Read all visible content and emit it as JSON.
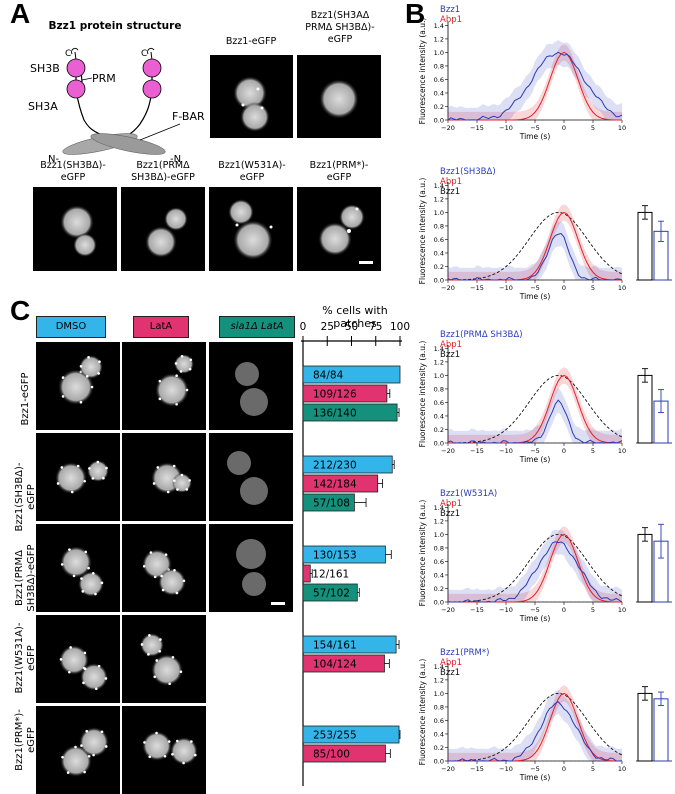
{
  "panel_letters": {
    "a": "A",
    "b": "B",
    "c": "C"
  },
  "panel_a": {
    "title": "Bzz1 protein structure",
    "domain_labels": {
      "sh3b": "SH3B",
      "prm": "PRM",
      "sh3a": "SH3A",
      "fbar": "F-BAR",
      "n1": "N-",
      "n2": "-N",
      "c": "C"
    },
    "row1_labels": [
      "Bzz1-eGFP",
      "Bzz1(SH3AΔ\nPRMΔ SH3BΔ)-\neGFP"
    ],
    "row2_labels": [
      "Bzz1(SH3BΔ)-\neGFP",
      "Bzz1(PRMΔ\nSH3BΔ)-eGFP",
      "Bzz1(W531A)-\neGFP",
      "Bzz1(PRM*)-\neGFP"
    ]
  },
  "panel_c": {
    "conditions": [
      "DMSO",
      "LatA",
      "sla1Δ LatA"
    ],
    "condition_colors": [
      "#33b5ea",
      "#e0336f",
      "#14917c"
    ],
    "axis_title": "% cells with patches",
    "ticks": [
      "0",
      "25",
      "50",
      "75",
      "100"
    ],
    "row_labels": [
      "Bzz1-eGFP",
      "Bzz1(SH3BΔ)-\neGFP",
      "Bzz1(PRMΔ\nSH3BΔ)-eGFP",
      "Bzz1(W531A)-\neGFP",
      "Bzz1(PRM*)-\neGFP"
    ]
  },
  "chart_data": [
    {
      "type": "bar",
      "title": "% cells with patches",
      "xlim": [
        0,
        100
      ],
      "groups": [
        {
          "name": "Bzz1-eGFP",
          "bars": [
            {
              "condition": "DMSO",
              "value": 100,
              "label": "84/84",
              "err": 0
            },
            {
              "condition": "LatA",
              "value": 86.5,
              "label": "109/126",
              "err": 3
            },
            {
              "condition": "sla1Δ LatA",
              "value": 97,
              "label": "136/140",
              "err": 2
            }
          ]
        },
        {
          "name": "Bzz1(SH3BΔ)-eGFP",
          "bars": [
            {
              "condition": "DMSO",
              "value": 92,
              "label": "212/230",
              "err": 2
            },
            {
              "condition": "LatA",
              "value": 77,
              "label": "142/184",
              "err": 5
            },
            {
              "condition": "sla1Δ LatA",
              "value": 53,
              "label": "57/108",
              "err": 12
            }
          ]
        },
        {
          "name": "Bzz1(PRMΔ SH3BΔ)-eGFP",
          "bars": [
            {
              "condition": "DMSO",
              "value": 85,
              "label": "130/153",
              "err": 6
            },
            {
              "condition": "LatA",
              "value": 7.5,
              "label": "12/161",
              "err": 2
            },
            {
              "condition": "sla1Δ LatA",
              "value": 56,
              "label": "57/102",
              "err": 2
            }
          ]
        },
        {
          "name": "Bzz1(W531A)-eGFP",
          "bars": [
            {
              "condition": "DMSO",
              "value": 96,
              "label": "154/161",
              "err": 3
            },
            {
              "condition": "LatA",
              "value": 84,
              "label": "104/124",
              "err": 5
            }
          ]
        },
        {
          "name": "Bzz1(PRM*)-eGFP",
          "bars": [
            {
              "condition": "DMSO",
              "value": 99,
              "label": "253/255",
              "err": 1
            },
            {
              "condition": "LatA",
              "value": 85,
              "label": "85/100",
              "err": 5
            }
          ]
        }
      ]
    },
    {
      "type": "line",
      "xlabel": "Time (s)",
      "ylabel": "Fluorescence intensity (a.u.)",
      "xlim": [
        -20,
        10
      ],
      "ylim": [
        0,
        1.45
      ],
      "xticks": [
        "−20",
        "−15",
        "−10",
        "−5",
        "0",
        "5",
        "10"
      ],
      "yticks": [
        "0.0",
        "0.2",
        "0.4",
        "0.6",
        "0.8",
        "1.0",
        "1.2",
        "1.4"
      ],
      "plots": [
        {
          "legend": [
            "Bzz1",
            "Abp1"
          ],
          "bzz1_peak": 1.0,
          "abp1_width": 2.4,
          "bzz1_width": 4.5
        },
        {
          "legend": [
            "Bzz1(SH3BΔ)",
            "Abp1",
            "Bzz1"
          ],
          "bzz1_peak": 0.7,
          "abp1_width": 2.4,
          "bzz1_width": 1.8,
          "bars": {
            "values": [
              1.0,
              0.72
            ],
            "errors": [
              0.1,
              0.15
            ]
          }
        },
        {
          "legend": [
            "Bzz1(PRMΔ SH3BΔ)",
            "Abp1",
            "Bzz1"
          ],
          "bzz1_peak": 0.6,
          "abp1_width": 2.4,
          "bzz1_width": 1.6,
          "bars": {
            "values": [
              1.0,
              0.62
            ],
            "errors": [
              0.1,
              0.17
            ]
          }
        },
        {
          "legend": [
            "Bzz1(W531A)",
            "Abp1",
            "Bzz1"
          ],
          "bzz1_peak": 0.88,
          "abp1_width": 2.4,
          "bzz1_width": 3.5,
          "bars": {
            "values": [
              1.0,
              0.9
            ],
            "errors": [
              0.1,
              0.25
            ]
          }
        },
        {
          "legend": [
            "Bzz1(PRM*)",
            "Abp1",
            "Bzz1"
          ],
          "bzz1_peak": 0.85,
          "abp1_width": 2.4,
          "bzz1_width": 3.0,
          "bars": {
            "values": [
              1.0,
              0.92
            ],
            "errors": [
              0.1,
              0.1
            ]
          }
        }
      ],
      "series_colors": {
        "variant": "#2b3bb8",
        "abp1": "#e0202a",
        "bzz1": "#111111"
      }
    }
  ]
}
